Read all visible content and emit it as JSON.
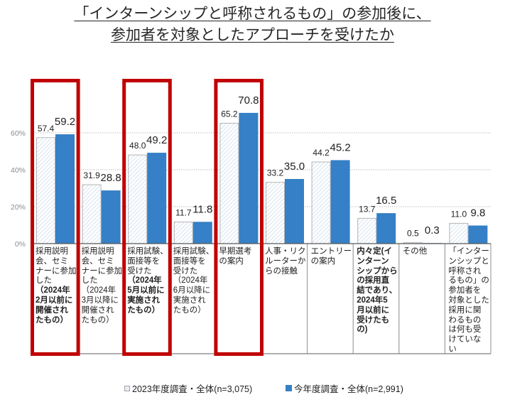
{
  "title": {
    "line1": "「インターンシップと呼称されるもの」の参加後に、",
    "line2": "参加者を対象としたアプローチを受けたか"
  },
  "colors": {
    "current_series": "#3580c6",
    "previous_series_hatch": "#c6d6ec",
    "previous_series_border": "#b4b4b4",
    "highlight_box": "#c00000",
    "gridline": "#bfbfbf",
    "axis_tick_label": "#8c8c8c"
  },
  "legend": {
    "prev_label": "2023年度調査・全体(n=3,075)",
    "current_label": "今年度調査・全体(n=2,991)"
  },
  "chart_data": {
    "type": "bar",
    "title": "「インターンシップと呼称されるもの」の参加後に、参加者を対象としたアプローチを受けたか",
    "xlabel": "",
    "ylabel": "",
    "ylim": [
      0,
      80
    ],
    "yticks": [
      0,
      20,
      40,
      60
    ],
    "ytick_labels": [
      "0%",
      "20%",
      "40%",
      "60%"
    ],
    "grid": true,
    "legend_position": "bottom",
    "categories": [
      "採用説明会、セミナーに参加した（2024年2月以前に開催されたもの）",
      "採用説明会、セミナーに参加した（2024年3月以降に開催されたもの）",
      "採用試験、面接等を受けた（2024年5月以前に実施されたもの）",
      "採用試験、面接等を受けた（2024年6月以降に実施されたもの）",
      "早期選考の案内",
      "人事・リクルーターからの接触",
      "エントリーの案内",
      "内々定(インターンシップからの採用直結であり、2024年5月以前に受けたもの)",
      "その他",
      "「インターンシップと呼称されるもの」の参加者を対象とした採用に関わるものは何も受けていない"
    ],
    "category_lines": [
      [
        {
          "t": "採用説明",
          "b": false
        },
        {
          "t": "会、セミ",
          "b": false
        },
        {
          "t": "ナーに参加",
          "b": false
        },
        {
          "t": "した",
          "b": false
        },
        {
          "t": "（2024年",
          "b": true
        },
        {
          "t": "2月以前に",
          "b": true
        },
        {
          "t": "開催され",
          "b": true
        },
        {
          "t": "たもの）",
          "b": true
        }
      ],
      [
        {
          "t": "採用説明",
          "b": false
        },
        {
          "t": "会、セミ",
          "b": false
        },
        {
          "t": "ナーに参加",
          "b": false
        },
        {
          "t": "した",
          "b": false
        },
        {
          "t": "（2024年",
          "b": false
        },
        {
          "t": "3月以降に",
          "b": false
        },
        {
          "t": "開催され",
          "b": false
        },
        {
          "t": "たもの）",
          "b": false
        }
      ],
      [
        {
          "t": "採用試験、",
          "b": false
        },
        {
          "t": "面接等を",
          "b": false
        },
        {
          "t": "受けた",
          "b": false
        },
        {
          "t": "（2024年",
          "b": true
        },
        {
          "t": "5月以前に",
          "b": true
        },
        {
          "t": "実施され",
          "b": true
        },
        {
          "t": "たもの）",
          "b": true
        }
      ],
      [
        {
          "t": "採用試験、",
          "b": false
        },
        {
          "t": "面接等を",
          "b": false
        },
        {
          "t": "受けた",
          "b": false
        },
        {
          "t": "（2024年",
          "b": false
        },
        {
          "t": "6月以降に",
          "b": false
        },
        {
          "t": "実施され",
          "b": false
        },
        {
          "t": "たもの）",
          "b": false
        }
      ],
      [
        {
          "t": "早期選考",
          "b": false
        },
        {
          "t": "の案内",
          "b": false
        }
      ],
      [
        {
          "t": "人事・リク",
          "b": false
        },
        {
          "t": "ルーターか",
          "b": false
        },
        {
          "t": "らの接触",
          "b": false
        }
      ],
      [
        {
          "t": "エントリー",
          "b": false
        },
        {
          "t": "の案内",
          "b": false
        }
      ],
      [
        {
          "t": "内々定(イ",
          "b": true
        },
        {
          "t": "ンターン",
          "b": true
        },
        {
          "t": "シップから",
          "b": true
        },
        {
          "t": "の採用直",
          "b": true
        },
        {
          "t": "結であり、",
          "b": true
        },
        {
          "t": "2024年5",
          "b": true
        },
        {
          "t": "月以前に",
          "b": true
        },
        {
          "t": "受けたも",
          "b": true
        },
        {
          "t": "の)",
          "b": true
        }
      ],
      [
        {
          "t": "その他",
          "b": false
        }
      ],
      [
        {
          "t": "「インター",
          "b": false
        },
        {
          "t": "ンシップと",
          "b": false
        },
        {
          "t": "呼称され",
          "b": false
        },
        {
          "t": "るもの」の",
          "b": false
        },
        {
          "t": "参加者を",
          "b": false
        },
        {
          "t": "対象とした",
          "b": false
        },
        {
          "t": "採用に関",
          "b": false
        },
        {
          "t": "わるもの",
          "b": false
        },
        {
          "t": "は何も受",
          "b": false
        },
        {
          "t": "けていな",
          "b": false
        },
        {
          "t": "い",
          "b": false
        }
      ]
    ],
    "series": [
      {
        "name": "2023年度調査・全体(n=3,075)",
        "style": "hatched",
        "values": [
          57.4,
          31.9,
          48.0,
          11.7,
          65.2,
          33.2,
          44.2,
          13.7,
          0.5,
          11.0
        ]
      },
      {
        "name": "今年度調査・全体(n=2,991)",
        "style": "solid",
        "values": [
          59.2,
          28.8,
          49.2,
          11.8,
          70.8,
          35.0,
          45.2,
          16.5,
          0.3,
          9.8
        ]
      }
    ],
    "highlighted_categories": [
      0,
      2,
      4
    ]
  }
}
